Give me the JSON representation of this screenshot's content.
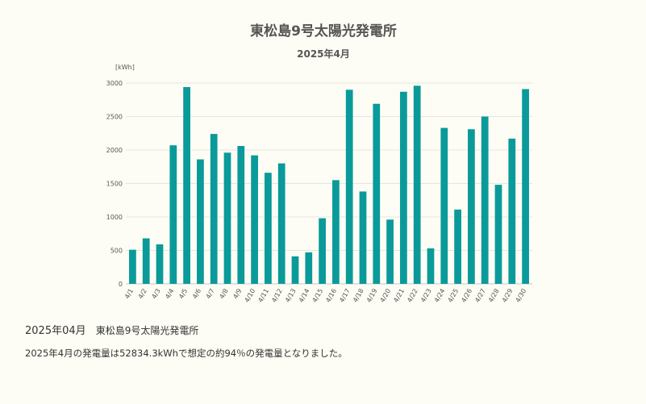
{
  "chart_data": {
    "type": "bar",
    "title": "東松島9号太陽光発電所",
    "subtitle": "2025年4月",
    "unit_label": "[kWh]",
    "ylim": [
      0,
      3000
    ],
    "yticks": [
      0,
      500,
      1000,
      1500,
      2000,
      2500,
      3000
    ],
    "grid": true,
    "bar_color": "#0a9a9a",
    "categories": [
      "4/1",
      "4/2",
      "4/3",
      "4/4",
      "4/5",
      "4/6",
      "4/7",
      "4/8",
      "4/9",
      "4/10",
      "4/11",
      "4/12",
      "4/13",
      "4/14",
      "4/15",
      "4/16",
      "4/17",
      "4/18",
      "4/19",
      "4/20",
      "4/21",
      "4/22",
      "4/23",
      "4/24",
      "4/25",
      "4/26",
      "4/27",
      "4/28",
      "4/29",
      "4/30"
    ],
    "values": [
      510,
      680,
      590,
      2070,
      2940,
      1860,
      2240,
      1960,
      2060,
      1920,
      1660,
      1800,
      410,
      470,
      980,
      1550,
      2900,
      1380,
      2690,
      960,
      2870,
      2960,
      530,
      2330,
      1110,
      2310,
      2500,
      1480,
      2170,
      2910
    ]
  },
  "caption": {
    "year_month": "2025年04月",
    "site_name": "東松島9号太陽光発電所",
    "summary": "2025年4月の発電量は52834.3kWhで想定の約94％の発電量となりました。"
  }
}
